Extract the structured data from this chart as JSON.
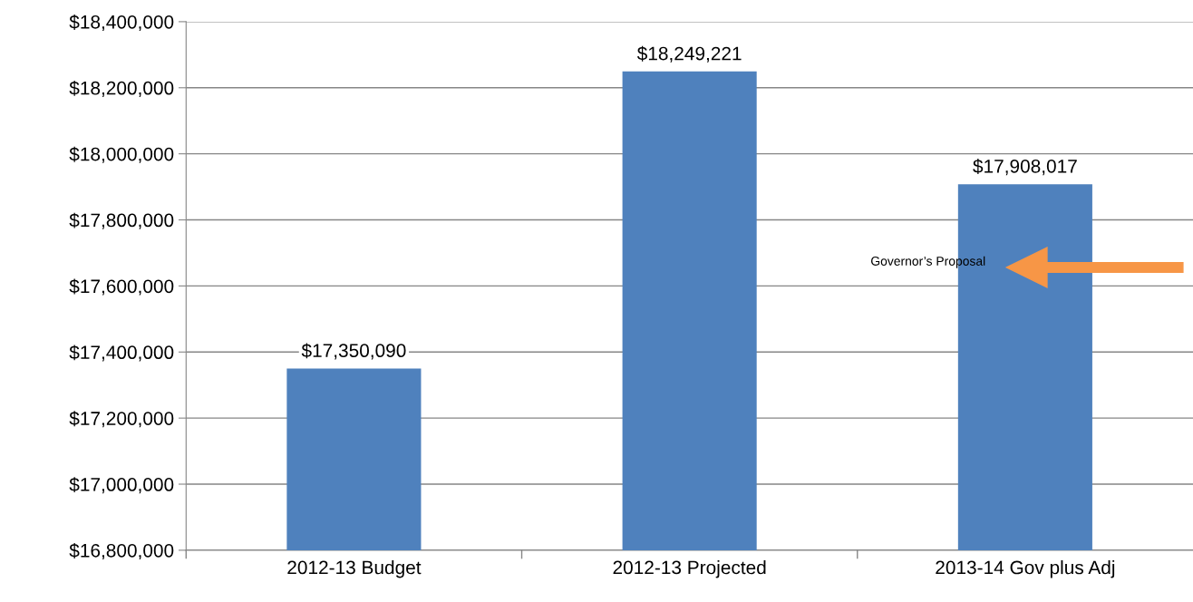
{
  "chart_data": {
    "type": "bar",
    "categories": [
      "2012-13 Budget",
      "2012-13 Projected",
      "2013-14 Gov plus Adj"
    ],
    "values": [
      17350090,
      18249221,
      17908017
    ],
    "value_labels": [
      "$17,350,090",
      "$18,249,221",
      "$17,908,017"
    ],
    "color": "#4f81bd",
    "ylim": [
      16800000,
      18400000
    ],
    "yticks": [
      {
        "value": 16800000,
        "label": "$16,800,000"
      },
      {
        "value": 17000000,
        "label": "$17,000,000"
      },
      {
        "value": 17200000,
        "label": "$17,200,000"
      },
      {
        "value": 17400000,
        "label": "$17,400,000"
      },
      {
        "value": 17600000,
        "label": "$17,600,000"
      },
      {
        "value": 17800000,
        "label": "$17,800,000"
      },
      {
        "value": 18000000,
        "label": "$18,000,000"
      },
      {
        "value": 18200000,
        "label": "$18,200,000"
      },
      {
        "value": 18400000,
        "label": "$18,400,000"
      }
    ],
    "grid": "y",
    "annotations": [
      "Governor’s Proposal"
    ]
  }
}
